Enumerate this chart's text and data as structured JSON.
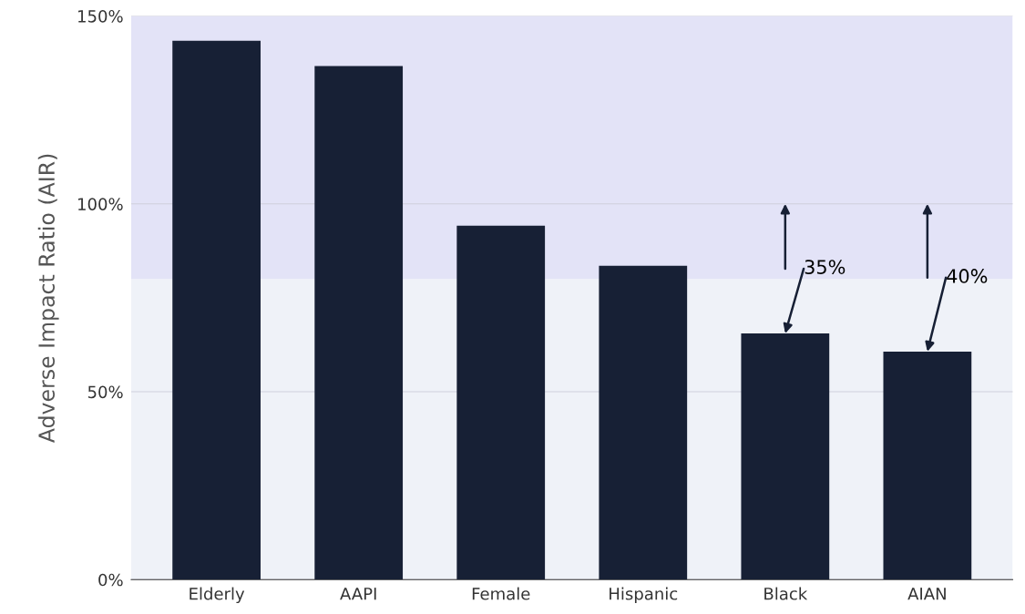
{
  "chart_data": {
    "type": "bar",
    "ylabel": "Adverse Impact Ratio (AIR)",
    "categories": [
      "Elderly",
      "AAPI",
      "Female",
      "Hispanic",
      "Black",
      "AIAN"
    ],
    "values": [
      143.4,
      136.7,
      94.2,
      83.5,
      65.5,
      60.7
    ],
    "color": "#172035",
    "ylim": [
      0,
      150
    ],
    "yticks": [
      {
        "value": 0,
        "label": "0%"
      },
      {
        "value": 50,
        "label": "50%"
      },
      {
        "value": 100,
        "label": "100%"
      },
      {
        "value": 150,
        "label": "150%"
      }
    ],
    "grid": "y",
    "bands": [
      {
        "axis": "y",
        "from": 0,
        "to": 80,
        "color": "#eff2f8"
      },
      {
        "axis": "y",
        "from": 80,
        "to": 150,
        "color": "#e3e3f7"
      }
    ],
    "annotations": [
      {
        "text": "35%",
        "x": "Black",
        "y": 65.5
      },
      {
        "text": "40%",
        "x": "AIAN",
        "y": 60.7
      }
    ]
  }
}
